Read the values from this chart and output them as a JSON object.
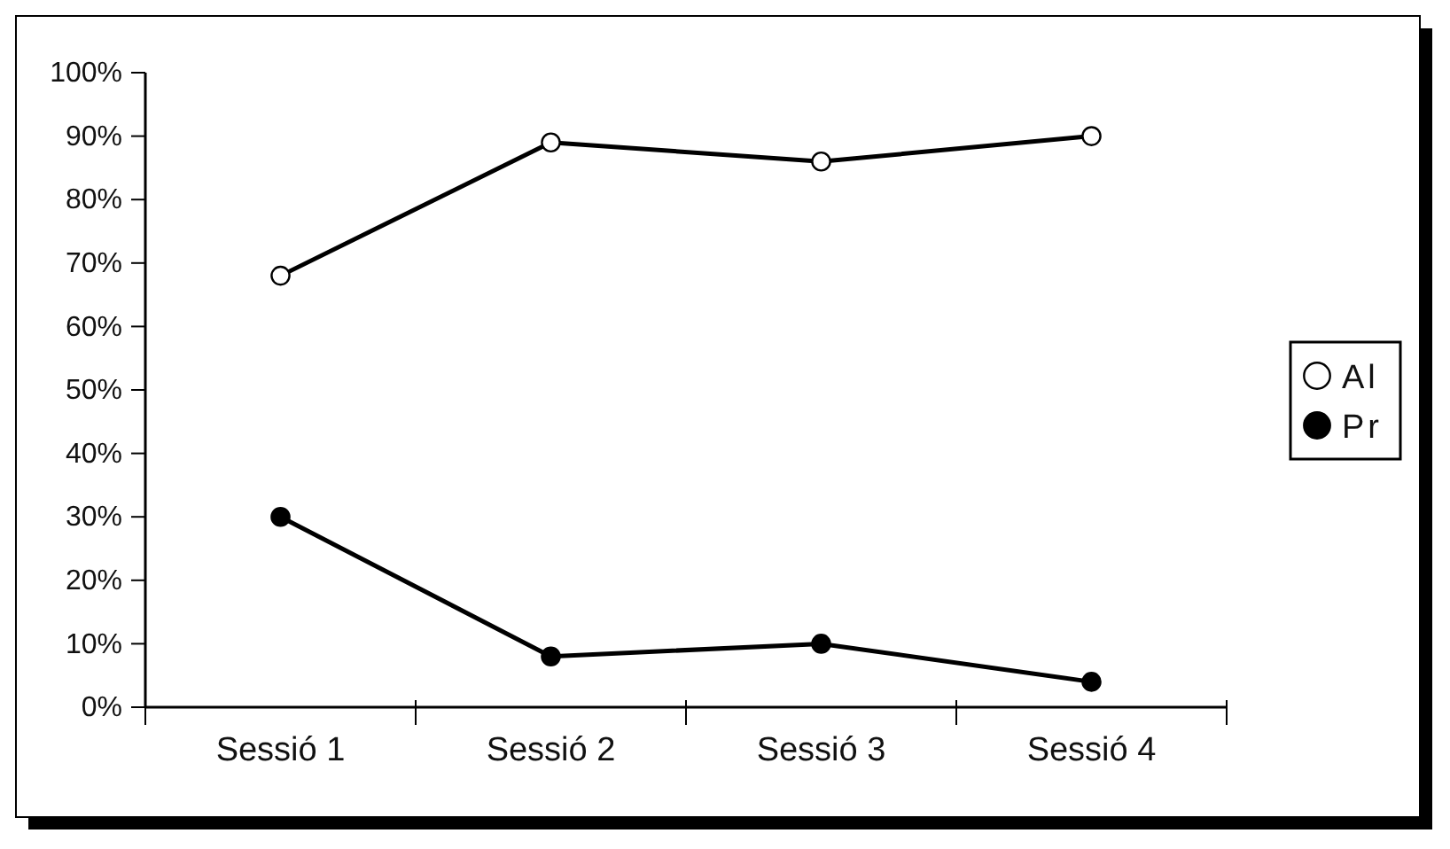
{
  "chart_data": {
    "type": "line",
    "categories": [
      "Sessió 1",
      "Sessió 2",
      "Sessió 3",
      "Sessió 4"
    ],
    "series": [
      {
        "name": "Al",
        "color": "#ffffff",
        "values": [
          68,
          89,
          86,
          90
        ]
      },
      {
        "name": "Pr",
        "color": "#000000",
        "values": [
          30,
          8,
          10,
          4
        ]
      }
    ],
    "ylim": [
      0,
      100
    ],
    "yticks": [
      {
        "value": 0,
        "label": "0%"
      },
      {
        "value": 10,
        "label": "10%"
      },
      {
        "value": 20,
        "label": "20%"
      },
      {
        "value": 30,
        "label": "30%"
      },
      {
        "value": 40,
        "label": "40%"
      },
      {
        "value": 50,
        "label": "50%"
      },
      {
        "value": 60,
        "label": "60%"
      },
      {
        "value": 70,
        "label": "70%"
      },
      {
        "value": 80,
        "label": "80%"
      },
      {
        "value": 90,
        "label": "90%"
      },
      {
        "value": 100,
        "label": "100%"
      }
    ],
    "legend": "right",
    "marker": "circle",
    "line_style": "solid",
    "grid": false
  }
}
